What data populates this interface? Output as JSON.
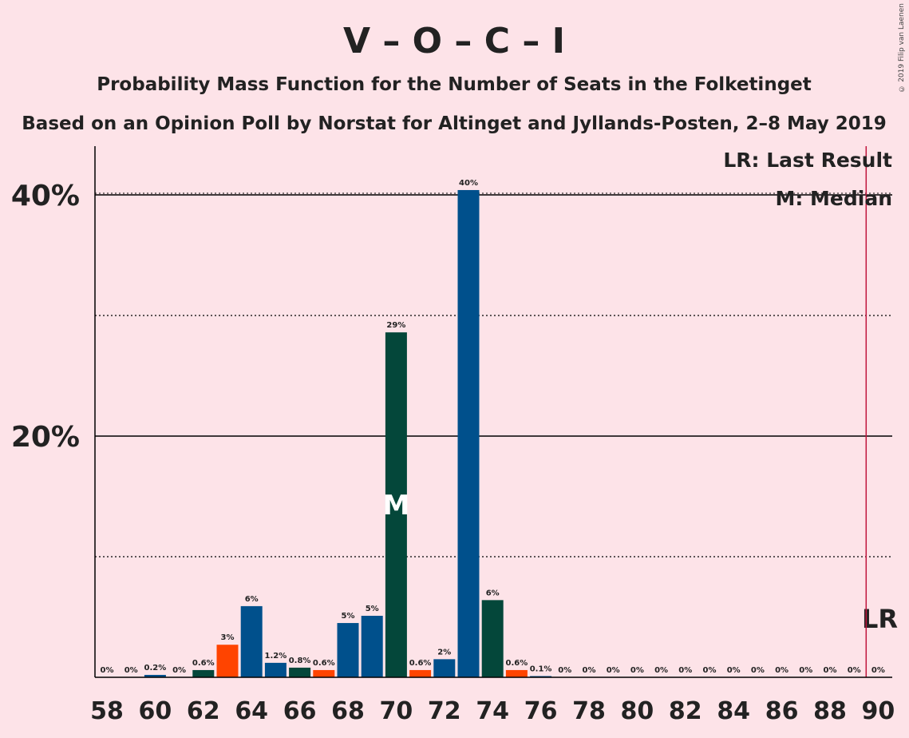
{
  "copyright": "© 2019 Filip van Laenen",
  "chart_data": {
    "type": "bar",
    "title": "V – O – C – I",
    "subtitle": "Probability Mass Function for the Number of Seats in the Folketinget",
    "subtitle2": "Based on an Opinion Poll by Norstat for Altinget and Jyllands-Posten, 2–8 May 2019",
    "legend": [
      "LR: Last Result",
      "M: Median"
    ],
    "last_result_label": "LR",
    "median_label": "M",
    "last_result_seat": 89.5,
    "median_seat": 70,
    "xlabel": "",
    "ylabel": "",
    "xlim": [
      58,
      90
    ],
    "ylim": [
      0,
      44
    ],
    "y_ticks": [
      {
        "value": 20,
        "label": "20%"
      },
      {
        "value": 40,
        "label": "40%"
      }
    ],
    "dotted_gridlines": [
      10,
      30
    ],
    "x_ticks": [
      58,
      60,
      62,
      64,
      66,
      68,
      70,
      72,
      74,
      76,
      78,
      80,
      82,
      84,
      86,
      88,
      90
    ],
    "colors": {
      "blue": "#00508c",
      "green": "#04473a",
      "orange": "#ff4400",
      "lr_line": "#c0143c"
    },
    "bars": [
      {
        "seats": 58,
        "value": 0,
        "label": "0%",
        "color": "green"
      },
      {
        "seats": 59,
        "value": 0,
        "label": "0%",
        "color": "orange"
      },
      {
        "seats": 60,
        "value": 0.2,
        "label": "0.2%",
        "color": "blue"
      },
      {
        "seats": 61,
        "value": 0,
        "label": "0%",
        "color": "blue"
      },
      {
        "seats": 62,
        "value": 0.6,
        "label": "0.6%",
        "color": "green"
      },
      {
        "seats": 63,
        "value": 2.7,
        "label": "3%",
        "color": "orange"
      },
      {
        "seats": 64,
        "value": 5.9,
        "label": "6%",
        "color": "blue"
      },
      {
        "seats": 65,
        "value": 1.2,
        "label": "1.2%",
        "color": "blue"
      },
      {
        "seats": 66,
        "value": 0.8,
        "label": "0.8%",
        "color": "green"
      },
      {
        "seats": 67,
        "value": 0.6,
        "label": "0.6%",
        "color": "orange"
      },
      {
        "seats": 68,
        "value": 4.5,
        "label": "5%",
        "color": "blue"
      },
      {
        "seats": 69,
        "value": 5.1,
        "label": "5%",
        "color": "blue"
      },
      {
        "seats": 70,
        "value": 28.6,
        "label": "29%",
        "color": "green"
      },
      {
        "seats": 71,
        "value": 0.6,
        "label": "0.6%",
        "color": "orange"
      },
      {
        "seats": 72,
        "value": 1.5,
        "label": "2%",
        "color": "blue"
      },
      {
        "seats": 73,
        "value": 40.4,
        "label": "40%",
        "color": "blue"
      },
      {
        "seats": 74,
        "value": 6.4,
        "label": "6%",
        "color": "green"
      },
      {
        "seats": 75,
        "value": 0.6,
        "label": "0.6%",
        "color": "orange"
      },
      {
        "seats": 76,
        "value": 0.1,
        "label": "0.1%",
        "color": "blue"
      },
      {
        "seats": 77,
        "value": 0,
        "label": "0%",
        "color": "blue"
      },
      {
        "seats": 78,
        "value": 0,
        "label": "0%",
        "color": "green"
      },
      {
        "seats": 79,
        "value": 0,
        "label": "0%",
        "color": "orange"
      },
      {
        "seats": 80,
        "value": 0,
        "label": "0%",
        "color": "blue"
      },
      {
        "seats": 81,
        "value": 0,
        "label": "0%",
        "color": "blue"
      },
      {
        "seats": 82,
        "value": 0,
        "label": "0%",
        "color": "green"
      },
      {
        "seats": 83,
        "value": 0,
        "label": "0%",
        "color": "orange"
      },
      {
        "seats": 84,
        "value": 0,
        "label": "0%",
        "color": "blue"
      },
      {
        "seats": 85,
        "value": 0,
        "label": "0%",
        "color": "blue"
      },
      {
        "seats": 86,
        "value": 0,
        "label": "0%",
        "color": "green"
      },
      {
        "seats": 87,
        "value": 0,
        "label": "0%",
        "color": "orange"
      },
      {
        "seats": 88,
        "value": 0,
        "label": "0%",
        "color": "blue"
      },
      {
        "seats": 89,
        "value": 0,
        "label": "0%",
        "color": "blue"
      },
      {
        "seats": 90,
        "value": 0,
        "label": "0%",
        "color": "green"
      }
    ]
  }
}
